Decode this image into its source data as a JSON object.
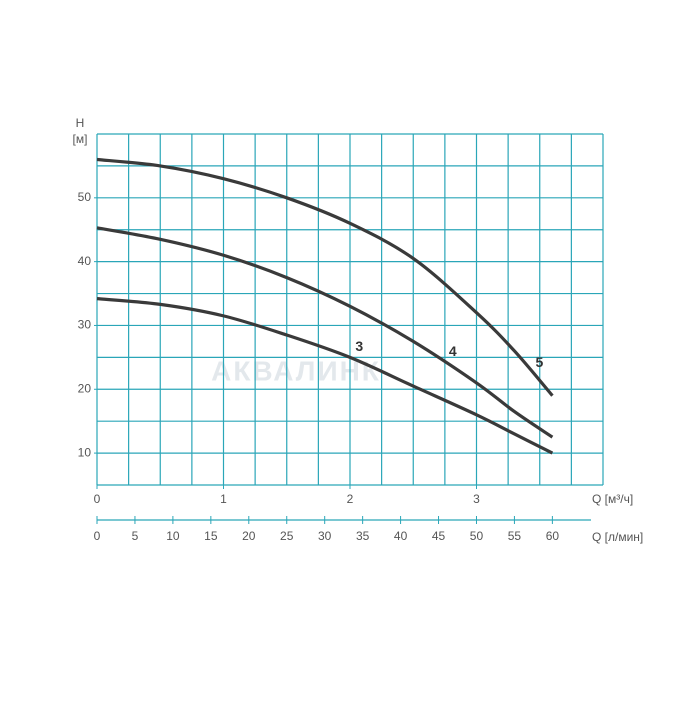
{
  "chart_data": {
    "type": "line",
    "y_label": "H",
    "y_unit": "[м]",
    "x_label": "Q [м³/ч]",
    "x2_label": "Q [л/мин]",
    "watermark": "АКВАЛИНК",
    "xlim": [
      0,
      4
    ],
    "xticks": [
      0,
      1,
      2,
      3
    ],
    "x_grid_step": 0.25,
    "ylim": [
      5,
      60
    ],
    "yticks": [
      10,
      20,
      30,
      40,
      50
    ],
    "y_grid_step": 5,
    "x2lim": [
      0,
      66.67
    ],
    "x2ticks": [
      0,
      5,
      10,
      15,
      20,
      25,
      30,
      35,
      40,
      45,
      50,
      55,
      60
    ],
    "grid": true,
    "grid_color": "#2aa6b8",
    "dashed_x_max": 0.5,
    "x": [
      0,
      0.5,
      1,
      1.5,
      2,
      2.5,
      3,
      3.3,
      3.6
    ],
    "series": [
      {
        "name": "5",
        "color": "#3a3a3a",
        "values": [
          56,
          55,
          53,
          50,
          46,
          40.5,
          32,
          26,
          19
        ]
      },
      {
        "name": "4",
        "color": "#3a3a3a",
        "values": [
          45.3,
          43.5,
          41,
          37.5,
          33,
          27.5,
          21,
          16.5,
          12.5
        ]
      },
      {
        "name": "3",
        "color": "#3a3a3a",
        "values": [
          34.2,
          33.3,
          31.5,
          28.5,
          25,
          20.5,
          16,
          13,
          10
        ]
      }
    ]
  }
}
